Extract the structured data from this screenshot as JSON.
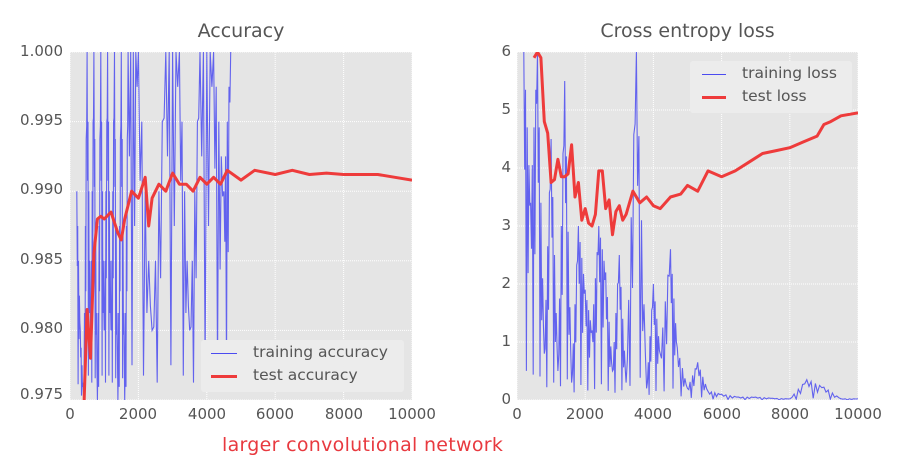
{
  "caption": "larger convolutional network",
  "colors": {
    "training": "#4b4bf0",
    "test": "#ee3b3b",
    "plot_bg": "#e5e5e5",
    "grid": "#ffffff",
    "text": "#555555",
    "caption": "#e8393f"
  },
  "chart_data": [
    {
      "type": "line",
      "title": "Accuracy",
      "xlabel": "",
      "ylabel": "",
      "xlim": [
        0,
        10000
      ],
      "ylim": [
        0.975,
        1.0
      ],
      "xticks": [
        "0",
        "2000",
        "4000",
        "6000",
        "8000",
        "10000"
      ],
      "yticks": [
        "0.975",
        "0.980",
        "0.985",
        "0.990",
        "0.995",
        "1.000"
      ],
      "grid": true,
      "legend_position": "lower right",
      "legend": [
        "training accuracy",
        "test accuracy"
      ],
      "series": [
        {
          "name": "training accuracy",
          "style": "thin blue line, highly noisy, oscillating between 0.97 and 1.0 until ~4700 then out of view above 1.0",
          "x": [
            200,
            300,
            400,
            500,
            600,
            700,
            800,
            900,
            1000,
            1100,
            1200,
            1300,
            1400,
            1500,
            1600,
            1700,
            2000,
            2400,
            2800,
            3200,
            3500,
            3800,
            4200,
            4500,
            4700
          ],
          "y": [
            0.99,
            0.98,
            0.975,
            1.0,
            0.98,
            1.0,
            0.975,
            1.0,
            0.98,
            1.0,
            0.98,
            1.0,
            0.975,
            1.0,
            0.975,
            1.0,
            1.0,
            0.98,
            1.0,
            1.0,
            0.98,
            1.0,
            1.0,
            0.99,
            1.0
          ]
        },
        {
          "name": "test accuracy",
          "style": "thick red line",
          "x": [
            400,
            500,
            600,
            700,
            800,
            900,
            1000,
            1200,
            1400,
            1500,
            1600,
            1800,
            2000,
            2200,
            2300,
            2400,
            2600,
            2800,
            3000,
            3200,
            3400,
            3600,
            3800,
            4000,
            4200,
            4400,
            4600,
            5000,
            5400,
            6000,
            6500,
            7000,
            7500,
            8000,
            8500,
            9000,
            9500,
            10000
          ],
          "y": [
            0.974,
            0.9815,
            0.978,
            0.9855,
            0.988,
            0.9882,
            0.988,
            0.9885,
            0.987,
            0.9865,
            0.988,
            0.99,
            0.9895,
            0.991,
            0.9875,
            0.9895,
            0.9905,
            0.99,
            0.9913,
            0.9905,
            0.9905,
            0.99,
            0.991,
            0.9905,
            0.991,
            0.9905,
            0.9915,
            0.9908,
            0.9915,
            0.9912,
            0.9915,
            0.9912,
            0.9913,
            0.9912,
            0.9912,
            0.9912,
            0.991,
            0.9908
          ]
        }
      ]
    },
    {
      "type": "line",
      "title": "Cross entropy loss",
      "xlabel": "",
      "ylabel": "",
      "xlim": [
        0,
        10000
      ],
      "ylim": [
        0,
        6
      ],
      "xticks": [
        "0",
        "2000",
        "4000",
        "6000",
        "8000",
        "10000"
      ],
      "yticks": [
        "0",
        "1",
        "2",
        "3",
        "4",
        "5",
        "6"
      ],
      "grid": true,
      "legend_position": "upper right",
      "legend": [
        "training loss",
        "test loss"
      ],
      "series": [
        {
          "name": "training loss",
          "style": "thin blue line, very noisy, decaying to near 0 after ~5000 with small spikes at ~8500 (0.35) and ~9000 (0.22)",
          "x": [
            200,
            400,
            600,
            800,
            1000,
            1200,
            1400,
            1600,
            1800,
            2000,
            2200,
            2400,
            2600,
            2800,
            3000,
            3200,
            3500,
            3800,
            4000,
            4200,
            4500,
            4700,
            5000,
            5300,
            5600,
            6000,
            6500,
            7000,
            7500,
            8000,
            8500,
            9000,
            9500,
            10000
          ],
          "y": [
            6.0,
            3.4,
            6.0,
            0.8,
            4.5,
            0.5,
            5.5,
            0.3,
            3.0,
            1.9,
            1.2,
            3.0,
            2.2,
            0.5,
            2.5,
            0.3,
            6.0,
            0.2,
            2.0,
            0.8,
            2.6,
            0.9,
            0.2,
            0.65,
            0.15,
            0.1,
            0.05,
            0.05,
            0.03,
            0.02,
            0.35,
            0.22,
            0.02,
            0.02
          ]
        },
        {
          "name": "test loss",
          "style": "thick red line",
          "x": [
            500,
            600,
            700,
            800,
            900,
            1000,
            1100,
            1200,
            1300,
            1400,
            1500,
            1600,
            1700,
            1800,
            1900,
            2000,
            2100,
            2200,
            2300,
            2400,
            2500,
            2600,
            2700,
            2800,
            2900,
            3000,
            3100,
            3200,
            3400,
            3600,
            3800,
            4000,
            4200,
            4500,
            4800,
            5000,
            5300,
            5600,
            6000,
            6400,
            6800,
            7200,
            7600,
            8000,
            8400,
            8800,
            9000,
            9200,
            9500,
            10000
          ],
          "y": [
            5.9,
            6.0,
            5.9,
            4.8,
            4.6,
            3.75,
            3.8,
            4.15,
            3.85,
            3.85,
            3.9,
            4.4,
            3.5,
            3.75,
            3.1,
            3.3,
            3.05,
            3.0,
            3.2,
            3.95,
            3.95,
            3.3,
            3.45,
            2.85,
            3.25,
            3.35,
            3.1,
            3.2,
            3.6,
            3.4,
            3.5,
            3.35,
            3.3,
            3.5,
            3.55,
            3.7,
            3.6,
            3.95,
            3.85,
            3.95,
            4.1,
            4.25,
            4.3,
            4.35,
            4.45,
            4.55,
            4.75,
            4.8,
            4.9,
            4.95
          ]
        }
      ]
    }
  ]
}
